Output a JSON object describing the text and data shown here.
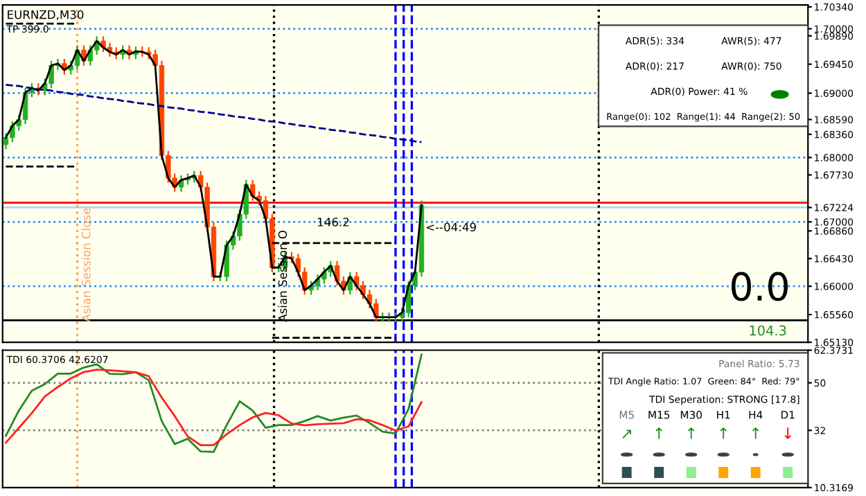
{
  "chart_data": [
    {
      "type": "candlestick",
      "categories": [
        null,
        null,
        null,
        null,
        null,
        null,
        null,
        null,
        null,
        null,
        null,
        null,
        null,
        null,
        null,
        null,
        null,
        null,
        null,
        null,
        null,
        null,
        null,
        null,
        null,
        null,
        null,
        null,
        null,
        null,
        null,
        null,
        null,
        null,
        null,
        null,
        null,
        null,
        null,
        null,
        null,
        null,
        null,
        null,
        null,
        null,
        null,
        null,
        null,
        null,
        null,
        null,
        null,
        null,
        null,
        null,
        null,
        null,
        null,
        null,
        null,
        null,
        null,
        null,
        null
      ],
      "ohlc": [
        [
          1.682,
          1.6837,
          1.6814,
          1.6831
        ],
        [
          1.6831,
          1.6855,
          1.6825,
          1.6849
        ],
        [
          1.6849,
          1.6865,
          1.6843,
          1.6859
        ],
        [
          1.6859,
          1.6907,
          1.6853,
          1.6901
        ],
        [
          1.6901,
          1.6914,
          1.6895,
          1.6908
        ],
        [
          1.6908,
          1.6914,
          1.6898,
          1.6904
        ],
        [
          1.6904,
          1.6921,
          1.6898,
          1.6915
        ],
        [
          1.6915,
          1.6949,
          1.6909,
          1.6943
        ],
        [
          1.6943,
          1.6952,
          1.6937,
          1.6946
        ],
        [
          1.6946,
          1.6952,
          1.693,
          1.6936
        ],
        [
          1.6936,
          1.6949,
          1.693,
          1.6943
        ],
        [
          1.6943,
          1.6973,
          1.6937,
          1.6967
        ],
        [
          1.6967,
          1.6973,
          1.6944,
          1.695
        ],
        [
          1.695,
          1.6973,
          1.6944,
          1.6967
        ],
        [
          1.6967,
          1.6987,
          1.6961,
          1.6981
        ],
        [
          1.6981,
          1.6987,
          1.6965,
          1.6971
        ],
        [
          1.6971,
          1.6977,
          1.6958,
          1.6964
        ],
        [
          1.6964,
          1.697,
          1.6954,
          1.696
        ],
        [
          1.696,
          1.6973,
          1.6954,
          1.6967
        ],
        [
          1.6967,
          1.6973,
          1.6954,
          1.696
        ],
        [
          1.696,
          1.6971,
          1.6954,
          1.6965
        ],
        [
          1.6965,
          1.6971,
          1.6958,
          1.6964
        ],
        [
          1.6964,
          1.697,
          1.6954,
          1.696
        ],
        [
          1.696,
          1.6966,
          1.6937,
          1.6943
        ],
        [
          1.6943,
          1.6949,
          1.6797,
          1.6803
        ],
        [
          1.6803,
          1.6809,
          1.6762,
          1.6768
        ],
        [
          1.6768,
          1.6774,
          1.6748,
          1.6754
        ],
        [
          1.6754,
          1.6771,
          1.6748,
          1.6765
        ],
        [
          1.6765,
          1.6774,
          1.6759,
          1.6768
        ],
        [
          1.6768,
          1.6778,
          1.6762,
          1.6772
        ],
        [
          1.6772,
          1.6778,
          1.6748,
          1.6754
        ],
        [
          1.6754,
          1.676,
          1.6686,
          1.6692
        ],
        [
          1.6692,
          1.6698,
          1.6609,
          1.6615
        ],
        [
          1.6615,
          1.6621,
          1.6609,
          1.6615
        ],
        [
          1.6615,
          1.667,
          1.6609,
          1.6664
        ],
        [
          1.6664,
          1.6684,
          1.6658,
          1.6678
        ],
        [
          1.6678,
          1.6718,
          1.6672,
          1.6712
        ],
        [
          1.6712,
          1.6764,
          1.6706,
          1.6758
        ],
        [
          1.6758,
          1.6764,
          1.6734,
          1.674
        ],
        [
          1.674,
          1.6746,
          1.6727,
          1.6733
        ],
        [
          1.6733,
          1.6739,
          1.6699,
          1.6705
        ],
        [
          1.6705,
          1.6711,
          1.6623,
          1.6629
        ],
        [
          1.6629,
          1.6635,
          1.6623,
          1.6629
        ],
        [
          1.6629,
          1.6652,
          1.6623,
          1.6646
        ],
        [
          1.6646,
          1.6652,
          1.6637,
          1.6643
        ],
        [
          1.6643,
          1.6649,
          1.6616,
          1.6622
        ],
        [
          1.6622,
          1.6628,
          1.6588,
          1.6594
        ],
        [
          1.6594,
          1.6607,
          1.6588,
          1.6601
        ],
        [
          1.6601,
          1.6617,
          1.6595,
          1.6611
        ],
        [
          1.6611,
          1.6628,
          1.6605,
          1.6622
        ],
        [
          1.6622,
          1.6638,
          1.6616,
          1.6632
        ],
        [
          1.6632,
          1.6638,
          1.6602,
          1.6608
        ],
        [
          1.6608,
          1.6614,
          1.6588,
          1.6594
        ],
        [
          1.6594,
          1.6621,
          1.6588,
          1.6615
        ],
        [
          1.6615,
          1.6621,
          1.6595,
          1.6601
        ],
        [
          1.6601,
          1.6607,
          1.6581,
          1.6587
        ],
        [
          1.6587,
          1.6593,
          1.6567,
          1.6573
        ],
        [
          1.6573,
          1.6579,
          1.6546,
          1.6552
        ],
        [
          1.6552,
          1.6558,
          1.6546,
          1.6552
        ],
        [
          1.6552,
          1.6558,
          1.6546,
          1.6552
        ],
        [
          1.6552,
          1.6558,
          1.6546,
          1.6552
        ],
        [
          1.6552,
          1.6565,
          1.6546,
          1.6559
        ],
        [
          1.6559,
          1.6607,
          1.6553,
          1.6601
        ],
        [
          1.6601,
          1.6628,
          1.6595,
          1.6622
        ],
        [
          1.6622,
          1.6732,
          1.6616,
          1.6726
        ]
      ],
      "colors": [
        "#22b022",
        "#22b022",
        "#22b022",
        "#22b022",
        "#22b022",
        "#ff4500",
        "#22b022",
        "#22b022",
        "#22b022",
        "#ff4500",
        "#22b022",
        "#22b022",
        "#ff4500",
        "#22b022",
        "#22b022",
        "#ff4500",
        "#ff4500",
        "#ff4500",
        "#22b022",
        "#ff4500",
        "#22b022",
        "#ff4500",
        "#ff4500",
        "#ff4500",
        "#ff4500",
        "#ff4500",
        "#ff4500",
        "#22b022",
        "#22b022",
        "#22b022",
        "#ff4500",
        "#ff4500",
        "#ff4500",
        "#22b022",
        "#22b022",
        "#22b022",
        "#22b022",
        "#22b022",
        "#ff4500",
        "#ff4500",
        "#ff4500",
        "#ff4500",
        "#22b022",
        "#22b022",
        "#ff4500",
        "#ff4500",
        "#ff4500",
        "#22b022",
        "#22b022",
        "#22b022",
        "#22b022",
        "#ff4500",
        "#ff4500",
        "#22b022",
        "#ff4500",
        "#ff4500",
        "#ff4500",
        "#ff4500",
        "#22b022",
        "#22b022",
        "#22b022",
        "#22b022",
        "#22b022",
        "#22b022",
        "#22b022"
      ],
      "series": [
        {
          "type": "line",
          "color": "#000000",
          "values": [
            1.6831,
            1.6849,
            1.6859,
            1.6901,
            1.6908,
            1.6904,
            1.6915,
            1.6943,
            1.6946,
            1.6936,
            1.6943,
            1.6967,
            1.695,
            1.6967,
            1.6981,
            1.6971,
            1.6964,
            1.696,
            1.6967,
            1.696,
            1.6965,
            1.6964,
            1.696,
            1.6943,
            1.6803,
            1.6768,
            1.6754,
            1.6765,
            1.6768,
            1.6772,
            1.6754,
            1.6692,
            1.6615,
            1.6615,
            1.6664,
            1.6678,
            1.6712,
            1.6758,
            1.674,
            1.6733,
            1.6705,
            1.6629,
            1.6629,
            1.6646,
            1.6643,
            1.6622,
            1.6594,
            1.6601,
            1.6611,
            1.6622,
            1.6632,
            1.6608,
            1.6594,
            1.6615,
            1.6601,
            1.6587,
            1.6573,
            1.6552,
            1.6552,
            1.6552,
            1.6552,
            1.6559,
            1.6601,
            1.6622,
            1.6726
          ]
        },
        {
          "type": "line",
          "color": "#00008b",
          "line_style": "dashed",
          "values": [
            1.6913,
            1.6912,
            1.6911,
            1.6909,
            1.6908,
            1.6906,
            1.6905,
            1.6904,
            1.6902,
            1.6901,
            1.6899,
            1.6898,
            1.6897,
            1.6895,
            1.6894,
            1.6892,
            1.6891,
            1.689,
            1.6888,
            1.6887,
            1.6885,
            1.6884,
            1.6883,
            1.6881,
            1.688,
            1.6878,
            1.6877,
            1.6876,
            1.6874,
            1.6873,
            1.6871,
            1.687,
            1.6869,
            1.6867,
            1.6866,
            1.6864,
            1.6863,
            1.6862,
            1.686,
            1.6859,
            1.6857,
            1.6856,
            1.6855,
            1.6853,
            1.6852,
            1.685,
            1.6849,
            1.6848,
            1.6846,
            1.6845,
            1.6843,
            1.6842,
            1.6841,
            1.6839,
            1.6838,
            1.6836,
            1.6835,
            1.6834,
            1.6832,
            1.6831,
            1.6829,
            1.6828,
            1.6827,
            1.6825,
            1.6824
          ]
        },
        {
          "type": "line",
          "color": "#000000",
          "line_style": "dashed",
          "values": [
            1.7008,
            1.7008,
            1.7008,
            1.7008,
            1.7008,
            1.7008,
            1.7008,
            1.7008,
            1.7008,
            1.7008,
            1.7008,
            1.7008,
            null,
            null,
            null,
            null,
            null,
            null,
            null,
            null,
            null,
            null,
            null,
            null,
            null,
            null,
            null,
            null,
            null,
            null,
            null,
            null,
            null,
            null,
            null,
            null,
            null,
            null,
            null,
            null,
            null,
            null,
            null,
            null,
            null,
            null,
            null,
            null,
            null,
            null,
            null,
            null,
            null,
            null,
            null,
            null,
            null,
            null,
            null,
            null,
            null,
            null,
            null,
            null,
            null
          ]
        },
        {
          "type": "line",
          "color": "#000000",
          "line_style": "dashed",
          "values": [
            1.6786,
            1.6786,
            1.6786,
            1.6786,
            1.6786,
            1.6786,
            1.6786,
            1.6786,
            1.6786,
            1.6786,
            1.6786,
            1.6786,
            null,
            null,
            null,
            null,
            null,
            null,
            null,
            null,
            null,
            null,
            null,
            null,
            null,
            null,
            null,
            null,
            null,
            null,
            null,
            null,
            null,
            null,
            null,
            null,
            null,
            null,
            null,
            null,
            null,
            null,
            null,
            null,
            null,
            null,
            null,
            null,
            null,
            null,
            null,
            null,
            null,
            null,
            null,
            null,
            null,
            null,
            null,
            null,
            null,
            null,
            null,
            null,
            null
          ]
        },
        {
          "type": "line",
          "color": "#000000",
          "line_style": "dashed",
          "values": [
            null,
            null,
            null,
            null,
            null,
            null,
            null,
            null,
            null,
            null,
            null,
            null,
            null,
            null,
            null,
            null,
            null,
            null,
            null,
            null,
            null,
            null,
            null,
            null,
            null,
            null,
            null,
            null,
            null,
            null,
            null,
            null,
            null,
            null,
            null,
            null,
            null,
            null,
            null,
            null,
            null,
            1.6667,
            1.6667,
            1.6667,
            1.6667,
            1.6667,
            1.6667,
            1.6667,
            1.6667,
            1.6667,
            1.6667,
            1.6667,
            1.6667,
            1.6667,
            1.6667,
            1.6667,
            1.6667,
            1.6667,
            1.6667,
            1.6667,
            1.6667,
            null,
            null,
            null,
            null
          ]
        },
        {
          "type": "line",
          "color": "#000000",
          "line_style": "dashed",
          "values": [
            null,
            null,
            null,
            null,
            null,
            null,
            null,
            null,
            null,
            null,
            null,
            null,
            null,
            null,
            null,
            null,
            null,
            null,
            null,
            null,
            null,
            null,
            null,
            null,
            null,
            null,
            null,
            null,
            null,
            null,
            null,
            null,
            null,
            null,
            null,
            null,
            null,
            null,
            null,
            null,
            null,
            1.652,
            1.652,
            1.652,
            1.652,
            1.652,
            1.652,
            1.652,
            1.652,
            1.652,
            1.652,
            1.652,
            1.652,
            1.652,
            1.652,
            1.652,
            1.652,
            1.652,
            1.652,
            1.652,
            1.652,
            null,
            null,
            null,
            null
          ]
        }
      ],
      "ylim": [
        1.6513,
        1.7037
      ],
      "yticks": [
        {
          "value": 1.7034,
          "label": "1.70340"
        },
        {
          "value": 1.7,
          "label": "1.70000"
        },
        {
          "value": 1.6989,
          "label": "1.69890"
        },
        {
          "value": 1.6945,
          "label": "1.69450"
        },
        {
          "value": 1.69,
          "label": "1.69000"
        },
        {
          "value": 1.6859,
          "label": "1.68590"
        },
        {
          "value": 1.6836,
          "label": "1.68360"
        },
        {
          "value": 1.68,
          "label": "1.68000"
        },
        {
          "value": 1.6773,
          "label": "1.67730"
        },
        {
          "value": 1.67224,
          "label": "1.67224"
        },
        {
          "value": 1.67,
          "label": "1.67000"
        },
        {
          "value": 1.6686,
          "label": "1.66860"
        },
        {
          "value": 1.6643,
          "label": "1.66430"
        },
        {
          "value": 1.66,
          "label": "1.66000"
        },
        {
          "value": 1.6556,
          "label": "1.65560"
        },
        {
          "value": 1.6513,
          "label": "1.65130"
        }
      ],
      "tick_labels": "y",
      "ref_lines": [
        {
          "axis": "y",
          "value": 1.7,
          "color": "#1e90ff",
          "line_style": "dotted"
        },
        {
          "axis": "y",
          "value": 1.69,
          "color": "#1e90ff",
          "line_style": "dotted"
        },
        {
          "axis": "y",
          "value": 1.68,
          "color": "#1e90ff",
          "line_style": "dotted"
        },
        {
          "axis": "y",
          "value": 1.67,
          "color": "#1e90ff",
          "line_style": "dotted"
        },
        {
          "axis": "y",
          "value": 1.66,
          "color": "#1e90ff",
          "line_style": "dotted"
        },
        {
          "axis": "y",
          "value": 1.67297,
          "color": "#ff0000",
          "line_style": "solid"
        },
        {
          "axis": "y",
          "value": 1.67224,
          "color": "#add8e6",
          "line_style": "solid"
        },
        {
          "axis": "y",
          "value": 1.6547,
          "color": "#000000",
          "line_style": "solid"
        }
      ],
      "annotations": [
        "EURNZD,M30",
        "TP 399.0",
        "146.2",
        "<--04:49",
        "0.0",
        "104.3",
        "ADR(5): 334",
        "AWR(5): 477",
        "ADR(0): 217",
        "AWR(0): 750",
        "ADR(0) Power: 41 %",
        "Range(0): 102  Range(1): 44  Range(2): 50",
        "Asian Session Close",
        "Asian Session O"
      ]
    },
    {
      "type": "line",
      "categories": [
        null,
        null,
        null,
        null,
        null,
        null,
        null,
        null,
        null,
        null,
        null,
        null,
        null,
        null,
        null,
        null,
        null,
        null,
        null,
        null,
        null,
        null,
        null,
        null,
        null,
        null,
        null,
        null,
        null,
        null,
        null,
        null,
        null
      ],
      "series": [
        {
          "color": "#228b22",
          "values": [
            29.9,
            39.5,
            47.0,
            49.5,
            53.5,
            53.5,
            55.8,
            57.0,
            53.4,
            53.3,
            54.0,
            51.0,
            35.5,
            26.8,
            28.8,
            24.0,
            23.8,
            34.0,
            43.0,
            39.5,
            33.0,
            34.0,
            34.0,
            35.5,
            37.4,
            35.7,
            36.8,
            37.6,
            34.8,
            31.5,
            30.8,
            40.1,
            60.7
          ]
        },
        {
          "color": "#ff2020",
          "values": [
            27.3,
            32.9,
            38.5,
            44.8,
            48.4,
            51.7,
            54.1,
            55.0,
            54.7,
            54.4,
            54.0,
            52.5,
            44.4,
            37.4,
            29.7,
            26.4,
            26.4,
            30.5,
            34.0,
            36.9,
            38.6,
            37.7,
            34.6,
            33.9,
            34.3,
            34.5,
            34.7,
            36.2,
            35.8,
            34.0,
            31.9,
            33.5,
            42.7
          ]
        }
      ],
      "ylim": [
        10.3169,
        62.3731
      ],
      "yticks": [
        62.3731,
        50,
        32,
        10.3169
      ],
      "tick_labels": "y",
      "ref_lines": [
        {
          "axis": "y",
          "value": 50,
          "color": "#808080",
          "line_style": "dotted"
        },
        {
          "axis": "y",
          "value": 32,
          "color": "#808080",
          "line_style": "dotted"
        }
      ],
      "annotations": [
        "TDI 60.3706 42.6207",
        "Panel Ratio: 5.73",
        "TDI Angle Ratio: 1.07  Green: 84°  Red: 79°",
        "TDI Seperation: STRONG [17.8]",
        "M5",
        "M15",
        "M30",
        "H1",
        "H4",
        "D1",
        "↗",
        "↑",
        "↑",
        "↑",
        "↑",
        "↓"
      ]
    }
  ]
}
